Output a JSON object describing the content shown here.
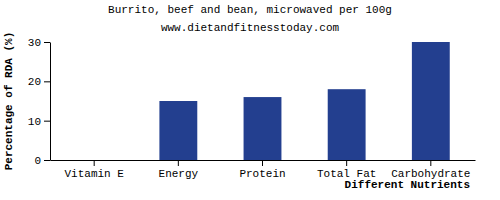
{
  "chart_data": {
    "type": "bar",
    "title": "Burrito, beef and bean, microwaved per 100g",
    "subtitle": "www.dietandfitnesstoday.com",
    "x_label": "Different Nutrients",
    "y_label": "Percentage of RDA (%)",
    "categories": [
      "Vitamin E",
      "Energy",
      "Protein",
      "Total Fat",
      "Carbohydrate"
    ],
    "values": [
      0,
      15,
      16,
      18,
      30
    ],
    "color": "#233f8f",
    "ylim": [
      0,
      30
    ],
    "yticks": [
      0,
      10,
      20,
      30
    ],
    "grid": false
  }
}
